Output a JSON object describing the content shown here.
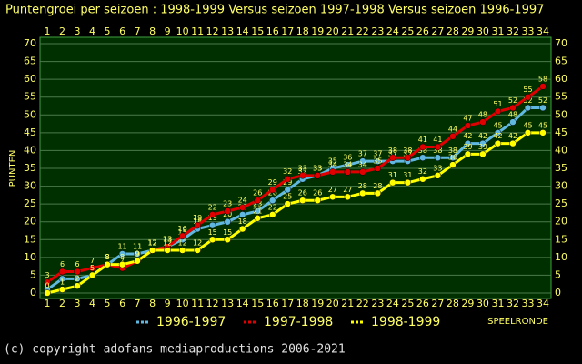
{
  "chart_data": {
    "type": "line",
    "title": "Puntengroei per seizoen : 1998-1999 Versus seizoen 1997-1998 Versus seizoen 1996-1997",
    "y_label": "PUNTEN",
    "x_label": "SPEELRONDE",
    "footer": "(c) copyright adofans mediaproductions 2006-2021",
    "categories": [
      "1",
      "2",
      "3",
      "4",
      "5",
      "6",
      "7",
      "8",
      "9",
      "10",
      "11",
      "12",
      "13",
      "14",
      "15",
      "16",
      "17",
      "18",
      "19",
      "20",
      "21",
      "22",
      "23",
      "24",
      "25",
      "26",
      "27",
      "28",
      "29",
      "30",
      "31",
      "32",
      "33",
      "34"
    ],
    "ylim": [
      0,
      70
    ],
    "yticks": [
      0,
      5,
      10,
      15,
      20,
      25,
      30,
      35,
      40,
      45,
      50,
      55,
      60,
      65,
      70
    ],
    "grid": true,
    "series": [
      {
        "name": "1996-1997",
        "color": "#60b8e0",
        "values": [
          1,
          4,
          4,
          5,
          8,
          11,
          11,
          12,
          13,
          15,
          18,
          19,
          20,
          22,
          23,
          26,
          29,
          32,
          33,
          35,
          36,
          37,
          37,
          37,
          37,
          38,
          38,
          38,
          42,
          42,
          45,
          48,
          52,
          52
        ]
      },
      {
        "name": "1997-1998",
        "color": "#e00000",
        "values": [
          3,
          6,
          6,
          7,
          8,
          7,
          9,
          12,
          13,
          16,
          19,
          22,
          23,
          24,
          26,
          29,
          32,
          33,
          33,
          34,
          34,
          34,
          35,
          38,
          38,
          41,
          41,
          44,
          47,
          48,
          51,
          52,
          55,
          58
        ]
      },
      {
        "name": "1998-1999",
        "color": "#ffff00",
        "values": [
          0,
          1,
          2,
          5,
          8,
          8,
          9,
          12,
          12,
          12,
          12,
          15,
          15,
          18,
          21,
          22,
          25,
          26,
          26,
          27,
          27,
          28,
          28,
          31,
          31,
          32,
          33,
          36,
          39,
          39,
          42,
          42,
          45,
          45
        ]
      }
    ]
  }
}
